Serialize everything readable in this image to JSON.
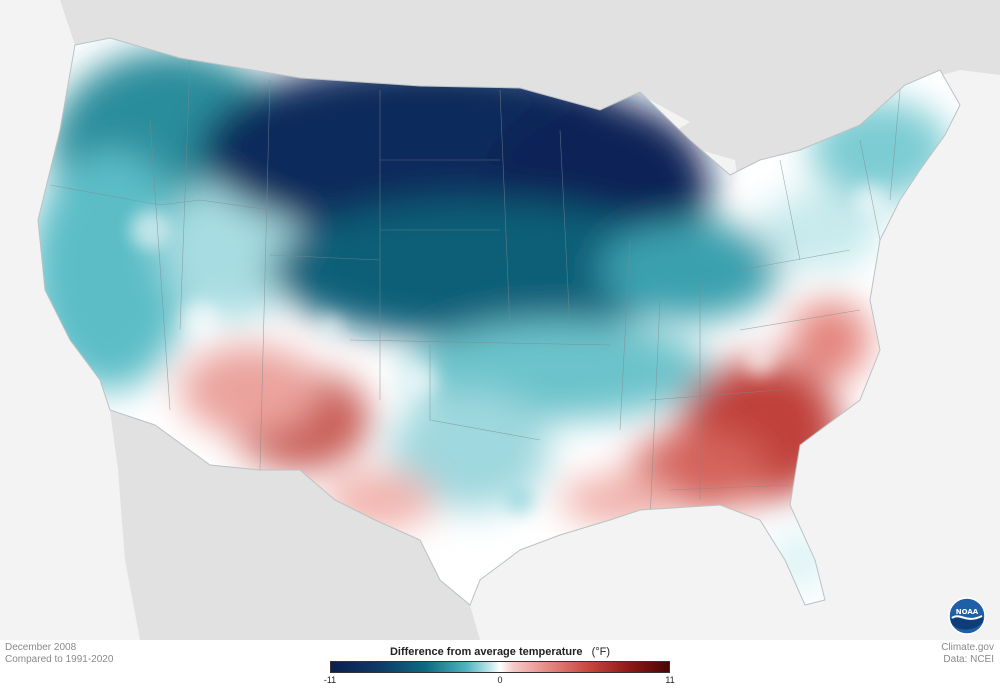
{
  "date_label": "December 2008",
  "baseline_label": "Compared to 1991-2020",
  "source": {
    "site": "Climate.gov",
    "data": "Data: NCEI",
    "logo_text": "NOAA"
  },
  "legend": {
    "title": "Difference from average temperature",
    "unit": "(°F)",
    "min_label": "-11",
    "mid_label": "0",
    "max_label": "11",
    "colors": {
      "cold_extreme": "#0a1f4e",
      "cold_strong": "#0e6a80",
      "cold_mild": "#bfe7ea",
      "neutral": "#ffffff",
      "warm_mild": "#f6c9c6",
      "warm_strong": "#c8483f",
      "warm_extreme": "#4a0606"
    }
  }
}
